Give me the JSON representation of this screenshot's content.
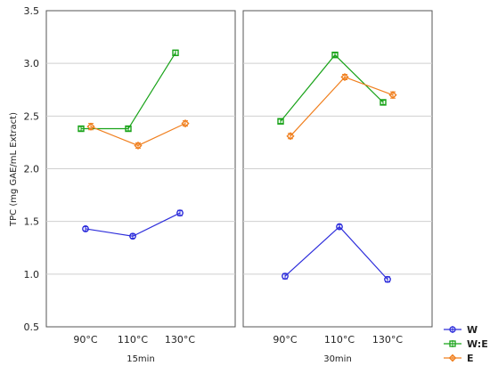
{
  "chart_data": {
    "type": "line",
    "ylabel": "TPC (mg GAE/mL Extract)",
    "ylim": [
      0.5,
      3.5
    ],
    "yticks": [
      0.5,
      1.0,
      1.5,
      2.0,
      2.5,
      3.0,
      3.5
    ],
    "ytick_labels": [
      "0.5",
      "1.0",
      "1.5",
      "2.0",
      "2.5",
      "3.0",
      "3.5"
    ],
    "grid": "horizontal",
    "legend_position": "bottom-right",
    "categories": [
      "90°C",
      "110°C",
      "130°C"
    ],
    "colors": {
      "W": "#2d2ddb",
      "W:E": "#19a319",
      "E": "#f07f1e"
    },
    "panels": [
      {
        "title": "15min",
        "series": [
          {
            "name": "W",
            "values": [
              1.43,
              1.36,
              1.58
            ],
            "errors": [
              0.02,
              0.02,
              0.025
            ]
          },
          {
            "name": "W:E",
            "values": [
              2.38,
              2.38,
              3.1
            ],
            "errors": [
              0.02,
              0.02,
              0.025
            ]
          },
          {
            "name": "E",
            "values": [
              2.4,
              2.22,
              2.43
            ],
            "errors": [
              0.03,
              0.025,
              0.025
            ]
          }
        ]
      },
      {
        "title": "30min",
        "series": [
          {
            "name": "W",
            "values": [
              0.98,
              1.45,
              0.95
            ],
            "errors": [
              0.025,
              0.02,
              0.025
            ]
          },
          {
            "name": "W:E",
            "values": [
              2.45,
              3.08,
              2.63
            ],
            "errors": [
              0.02,
              0.02,
              0.02
            ]
          },
          {
            "name": "E",
            "values": [
              2.31,
              2.87,
              2.7
            ],
            "errors": [
              0.025,
              0.025,
              0.03
            ]
          }
        ]
      }
    ]
  }
}
